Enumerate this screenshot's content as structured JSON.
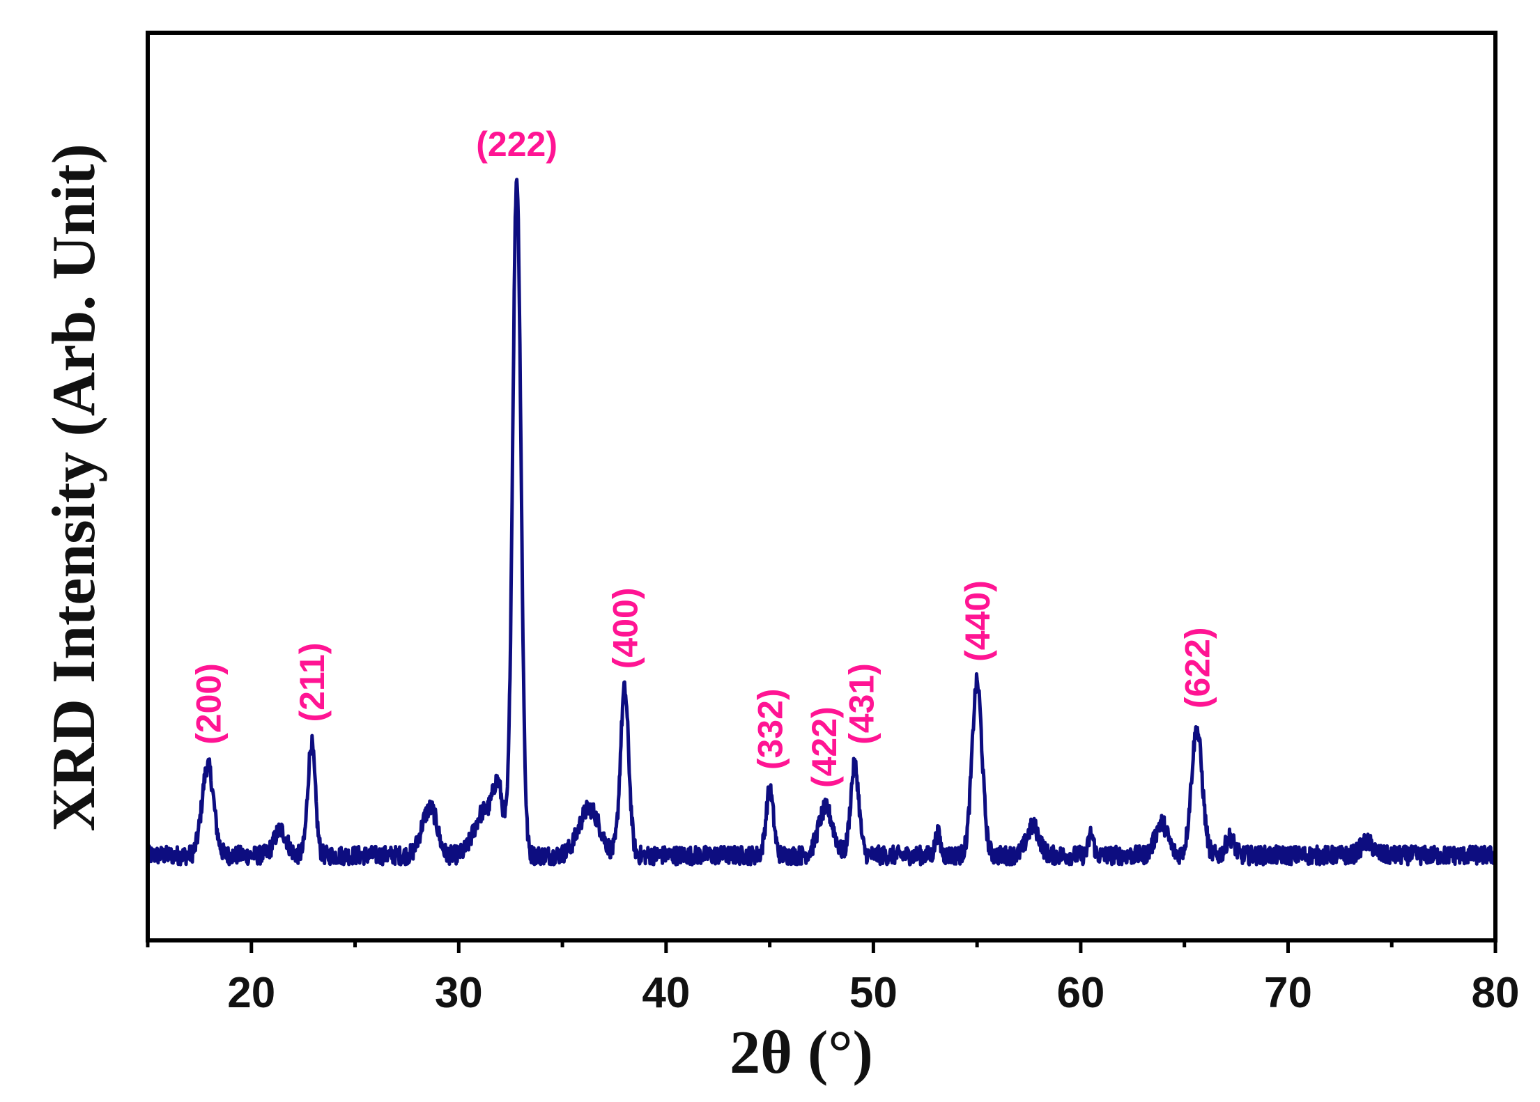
{
  "chart_data": {
    "type": "line",
    "xlabel": "2θ (°)",
    "ylabel": "XRD Intensity (Arb. Unit)",
    "xlim": [
      15,
      80
    ],
    "ylim": [
      0,
      100
    ],
    "x_ticks": [
      20,
      30,
      40,
      50,
      60,
      70,
      80
    ],
    "y_ticks_shown": false,
    "grid": false,
    "legend": "none",
    "series": [
      {
        "color": "#0d0d80",
        "baseline": 6,
        "peaks": [
          {
            "x": 17.9,
            "y": 18.5,
            "w": 0.28
          },
          {
            "x": 21.4,
            "y": 9.5,
            "w": 0.3
          },
          {
            "x": 22.9,
            "y": 21.5,
            "w": 0.18
          },
          {
            "x": 28.4,
            "y": 10.5,
            "w": 0.3
          },
          {
            "x": 28.8,
            "y": 10.0,
            "w": 0.25
          },
          {
            "x": 31.2,
            "y": 12.0,
            "w": 0.45
          },
          {
            "x": 31.9,
            "y": 14.5,
            "w": 0.25
          },
          {
            "x": 32.8,
            "y": 100,
            "w": 0.2
          },
          {
            "x": 36.3,
            "y": 12.5,
            "w": 0.5
          },
          {
            "x": 38.0,
            "y": 29.0,
            "w": 0.2
          },
          {
            "x": 45.0,
            "y": 15.0,
            "w": 0.18
          },
          {
            "x": 47.7,
            "y": 12.5,
            "w": 0.35
          },
          {
            "x": 49.1,
            "y": 18.5,
            "w": 0.2
          },
          {
            "x": 53.1,
            "y": 9.0,
            "w": 0.12
          },
          {
            "x": 55.0,
            "y": 30.0,
            "w": 0.24
          },
          {
            "x": 57.7,
            "y": 10.0,
            "w": 0.3
          },
          {
            "x": 60.5,
            "y": 9.0,
            "w": 0.12
          },
          {
            "x": 63.9,
            "y": 10.5,
            "w": 0.3
          },
          {
            "x": 65.6,
            "y": 23.5,
            "w": 0.26
          },
          {
            "x": 67.2,
            "y": 8.5,
            "w": 0.2
          },
          {
            "x": 73.8,
            "y": 7.8,
            "w": 0.3
          }
        ]
      }
    ],
    "annotations": [
      {
        "text": "(200)",
        "x": 17.9,
        "y": 27,
        "rotated": true
      },
      {
        "text": "(211)",
        "x": 22.9,
        "y": 30,
        "rotated": true
      },
      {
        "text": "(222)",
        "x": 32.8,
        "y": 103,
        "rotated": false
      },
      {
        "text": "(400)",
        "x": 38.0,
        "y": 37.5,
        "rotated": true
      },
      {
        "text": "(332)",
        "x": 45.0,
        "y": 23.5,
        "rotated": true
      },
      {
        "text": "(422)",
        "x": 47.6,
        "y": 21,
        "rotated": true
      },
      {
        "text": "(431)",
        "x": 49.4,
        "y": 27,
        "rotated": true
      },
      {
        "text": "(440)",
        "x": 55.0,
        "y": 38.5,
        "rotated": true
      },
      {
        "text": "(622)",
        "x": 65.6,
        "y": 32,
        "rotated": true
      }
    ],
    "annotation_color": "#ff1493"
  }
}
